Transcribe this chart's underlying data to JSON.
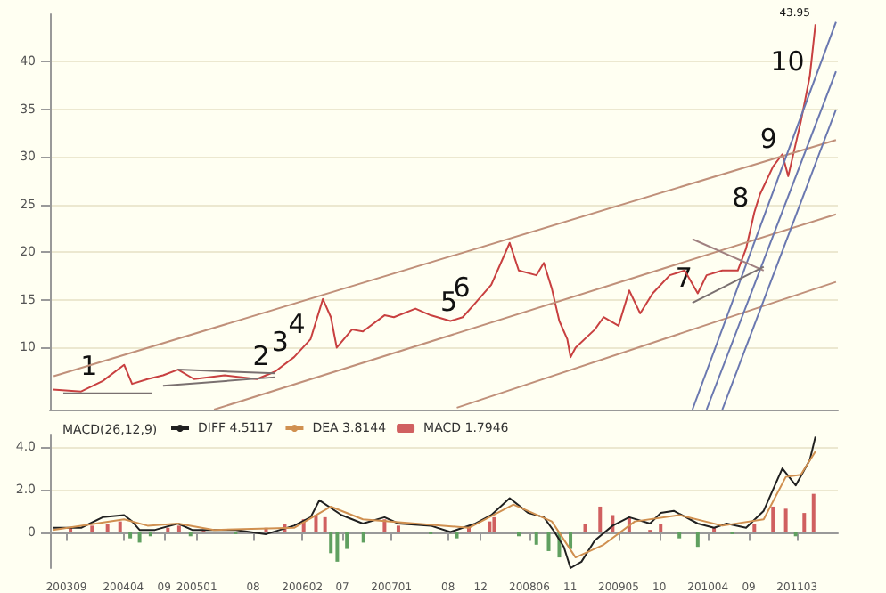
{
  "chart_data": [
    {
      "type": "line",
      "xlim": [
        "2003-07",
        "2011-08"
      ],
      "ylim": [
        3.5,
        45
      ],
      "yticks": [
        10,
        15,
        20,
        25,
        30,
        35,
        40
      ],
      "tick_labels": "y",
      "grid": "y",
      "marker": "none",
      "series": [
        {
          "color": "#c84040",
          "x": [
            "2003-07-12",
            "2003-10-26",
            "2004-01-15",
            "2004-04-04",
            "2004-05-04",
            "2004-07-01",
            "2004-08-28",
            "2004-10-23",
            "2004-12-22",
            "2005-04-16",
            "2005-08-15",
            "2005-10-22",
            "2006-01-01",
            "2006-03-04",
            "2006-04-19",
            "2006-05-19",
            "2006-06-10",
            "2006-08-06",
            "2006-09-16",
            "2006-12-06",
            "2007-01-10",
            "2007-04-01",
            "2007-05-28",
            "2007-08-10",
            "2007-09-25",
            "2007-11-12",
            "2008-01-10",
            "2008-03-19",
            "2008-04-22",
            "2008-06-27",
            "2008-07-25",
            "2008-08-24",
            "2008-09-21",
            "2008-10-21",
            "2008-11-02",
            "2008-11-21",
            "2009-02-01",
            "2009-03-06",
            "2009-05-01",
            "2009-06-10",
            "2009-07-21",
            "2009-09-06",
            "2009-11-09",
            "2010-01-04",
            "2010-02-22",
            "2010-03-27",
            "2010-05-25",
            "2010-07-22",
            "2010-08-22",
            "2010-09-22",
            "2010-10-13",
            "2010-12-01",
            "2011-01-05",
            "2011-01-27",
            "2011-03-15",
            "2011-04-18",
            "2011-05-09"
          ],
          "values": [
            5.6,
            5.4,
            6.5,
            8.2,
            6.2,
            6.7,
            7.1,
            7.7,
            6.7,
            7.1,
            6.7,
            7.5,
            9.0,
            10.9,
            15.1,
            13.2,
            10.0,
            11.9,
            11.7,
            13.4,
            13.2,
            14.1,
            13.4,
            12.8,
            13.2,
            14.7,
            16.6,
            21.0,
            18.1,
            17.6,
            18.9,
            16.2,
            12.8,
            10.9,
            9.0,
            10.0,
            11.9,
            13.2,
            12.3,
            16.0,
            13.6,
            15.7,
            17.6,
            18.1,
            15.7,
            17.6,
            18.1,
            18.1,
            20.4,
            24.2,
            26.1,
            29.0,
            30.3,
            28.0,
            33.7,
            38.5,
            43.95
          ]
        },
        {
          "color": "#c0907a",
          "x": [
            "2003-07-15",
            "2011-07-25"
          ],
          "values": [
            7.0,
            31.8
          ]
        },
        {
          "color": "#c0907a",
          "x": [
            "2005-03-07",
            "2011-07-25"
          ],
          "values": [
            3.5,
            24.0
          ]
        },
        {
          "color": "#c0907a",
          "x": [
            "2007-09-03",
            "2011-07-25"
          ],
          "values": [
            3.7,
            16.9
          ]
        },
        {
          "color": "#6a78b0",
          "x": [
            "2010-02-02",
            "2011-07-25"
          ],
          "values": [
            3.5,
            44.2
          ]
        },
        {
          "color": "#6a78b0",
          "x": [
            "2010-03-27",
            "2011-07-25"
          ],
          "values": [
            3.5,
            39.0
          ]
        },
        {
          "color": "#6a78b0",
          "x": [
            "2010-05-25",
            "2011-07-25"
          ],
          "values": [
            3.5,
            35.0
          ]
        },
        {
          "color": "#7a7070",
          "x": [
            "2003-08-20",
            "2004-07-18"
          ],
          "values": [
            5.2,
            5.2
          ]
        },
        {
          "color": "#7a7070",
          "x": [
            "2004-10-23",
            "2005-10-22"
          ],
          "values": [
            7.7,
            7.3
          ]
        },
        {
          "color": "#7a7070",
          "x": [
            "2004-08-28",
            "2005-10-22"
          ],
          "values": [
            6.0,
            6.9
          ]
        },
        {
          "color": "#a08080",
          "x": [
            "2010-02-02",
            "2010-10-27"
          ],
          "values": [
            21.4,
            18.1
          ]
        },
        {
          "color": "#7a7070",
          "x": [
            "2010-02-02",
            "2010-10-27"
          ],
          "values": [
            14.7,
            18.5
          ]
        }
      ],
      "annotations": [
        {
          "text": "1",
          "x": "2004-01-15",
          "y": 6.5
        },
        {
          "text": "2",
          "x": "2005-10-22",
          "y": 7.5
        },
        {
          "text": "3",
          "x": "2006-01-01",
          "y": 9.0
        },
        {
          "text": "4",
          "x": "2006-03-04",
          "y": 10.9
        },
        {
          "text": "5",
          "x": "2007-09-25",
          "y": 13.2
        },
        {
          "text": "6",
          "x": "2007-11-12",
          "y": 14.7
        },
        {
          "text": "7",
          "x": "2010-02-22",
          "y": 15.7
        },
        {
          "text": "8",
          "x": "2010-09-22",
          "y": 24.2
        },
        {
          "text": "9",
          "x": "2011-01-05",
          "y": 30.3
        },
        {
          "text": "10",
          "x": "2011-04-18",
          "y": 38.5
        },
        {
          "text": "43.95",
          "x": "2011-05-09",
          "y": 43.95
        }
      ]
    },
    {
      "type": "line",
      "title": "MACD(26,12,9)",
      "xlim": [
        "2003-07",
        "2011-08"
      ],
      "ylim": [
        -1.7,
        4.6
      ],
      "yticks": [
        0,
        {
          "value": 2,
          "label": "2.0"
        },
        {
          "value": 4,
          "label": "4.0"
        }
      ],
      "grid": "y",
      "marker": "none",
      "legend": "top left",
      "xticks": [
        {
          "value": "2003-09",
          "label": "200309"
        },
        {
          "value": "2004-04",
          "label": "200404"
        },
        {
          "value": "2004-09",
          "label": "09"
        },
        {
          "value": "2005-01",
          "label": "200501"
        },
        {
          "value": "2005-08",
          "label": "08"
        },
        {
          "value": "2006-02",
          "label": "200602"
        },
        {
          "value": "2006-07",
          "label": "07"
        },
        {
          "value": "2007-01",
          "label": "200701"
        },
        {
          "value": "2007-08",
          "label": "08"
        },
        {
          "value": "2007-12",
          "label": "12"
        },
        {
          "value": "2008-06",
          "label": "200806"
        },
        {
          "value": "2008-11",
          "label": "11"
        },
        {
          "value": "2009-05",
          "label": "200905"
        },
        {
          "value": "2009-10",
          "label": "10"
        },
        {
          "value": "2010-04",
          "label": "201004"
        },
        {
          "value": "2010-09",
          "label": "09"
        },
        {
          "value": "2011-03",
          "label": "201103"
        }
      ],
      "series": [
        {
          "name": "DIFF 4.5117",
          "color": "#202020",
          "x": [
            "2003-07-12",
            "2003-10-26",
            "2004-01-15",
            "2004-04-04",
            "2004-05-04",
            "2004-06-01",
            "2004-07-29",
            "2004-10-23",
            "2004-12-15",
            "2005-05-27",
            "2005-09-18",
            "2006-01-01",
            "2006-03-04",
            "2006-04-06",
            "2006-06-28",
            "2006-09-16",
            "2006-12-06",
            "2007-01-27",
            "2007-05-28",
            "2007-08-10",
            "2007-09-25",
            "2007-11-12",
            "2008-01-10",
            "2008-03-19",
            "2008-05-28",
            "2008-07-25",
            "2008-09-03",
            "2008-10-08",
            "2008-11-02",
            "2008-12-13",
            "2009-02-01",
            "2009-04-09",
            "2009-06-10",
            "2009-08-27",
            "2009-10-06",
            "2009-11-24",
            "2010-02-22",
            "2010-04-24",
            "2010-06-10",
            "2010-08-22",
            "2010-10-27",
            "2011-01-05",
            "2011-02-24",
            "2011-04-18",
            "2011-05-09"
          ],
          "values": [
            0.2,
            0.2,
            0.7,
            0.8,
            0.5,
            0.1,
            0.1,
            0.4,
            0.1,
            0.1,
            -0.1,
            0.3,
            0.7,
            1.5,
            0.8,
            0.4,
            0.7,
            0.4,
            0.3,
            0,
            0.2,
            0.4,
            0.8,
            1.6,
            0.9,
            0.7,
            0,
            -0.7,
            -1.7,
            -1.4,
            -0.4,
            0.3,
            0.7,
            0.4,
            0.9,
            1.0,
            0.4,
            0.2,
            0.4,
            0.2,
            1.0,
            3.0,
            2.2,
            3.4,
            4.5
          ]
        },
        {
          "name": "DEA 3.8144",
          "color": "#d09050",
          "x": [
            "2003-07-12",
            "2004-04-04",
            "2004-07-01",
            "2004-10-23",
            "2005-03-07",
            "2006-01-01",
            "2006-05-19",
            "2006-09-16",
            "2007-04-01",
            "2007-10-18",
            "2008-04-02",
            "2008-08-24",
            "2008-11-21",
            "2009-03-06",
            "2009-07-01",
            "2009-12-15",
            "2010-05-25",
            "2010-10-27",
            "2011-01-18",
            "2011-03-15",
            "2011-05-09"
          ],
          "values": [
            0.1,
            0.6,
            0.3,
            0.4,
            0.1,
            0.2,
            1.2,
            0.6,
            0.4,
            0.2,
            1.3,
            0.5,
            -1.2,
            -0.6,
            0.5,
            0.8,
            0.3,
            0.6,
            2.6,
            2.7,
            3.8
          ]
        },
        {
          "name": "MACD 1.7946",
          "type": "bar",
          "color": "#d06060",
          "x": [
            "2003-09-16",
            "2003-12-06",
            "2004-02-02",
            "2004-03-20",
            "2004-04-27",
            "2004-06-01",
            "2004-07-12",
            "2004-09-15",
            "2004-10-27",
            "2004-12-09",
            "2005-01-27",
            "2005-05-27",
            "2005-09-18",
            "2005-11-27",
            "2006-02-06",
            "2006-03-24",
            "2006-04-27",
            "2006-05-19",
            "2006-06-12",
            "2006-07-18",
            "2006-09-18",
            "2006-12-06",
            "2007-01-27",
            "2007-05-28",
            "2007-09-03",
            "2007-10-18",
            "2008-01-04",
            "2008-01-21",
            "2008-04-22",
            "2008-06-27",
            "2008-08-12",
            "2008-09-21",
            "2008-11-02",
            "2008-12-27",
            "2009-02-21",
            "2009-04-09",
            "2009-06-10",
            "2009-08-27",
            "2009-10-06",
            "2009-12-15",
            "2010-02-22",
            "2010-04-24",
            "2010-07-01",
            "2010-09-22",
            "2010-12-01",
            "2011-01-18",
            "2011-02-24",
            "2011-03-28",
            "2011-05-02"
          ],
          "values": [
            0.2,
            0.3,
            0.4,
            0.5,
            -0.3,
            -0.5,
            -0.2,
            0.2,
            0.3,
            -0.2,
            0.1,
            -0.1,
            0.2,
            0.4,
            0.6,
            0.8,
            0.7,
            -1.0,
            -1.4,
            -0.8,
            -0.5,
            0.6,
            0.3,
            -0.1,
            -0.3,
            0.3,
            0.5,
            0.7,
            -0.2,
            -0.6,
            -0.9,
            -1.2,
            -0.8,
            0.4,
            1.2,
            0.8,
            0.7,
            0.1,
            0.4,
            -0.3,
            -0.7,
            0.2,
            -0.1,
            0.4,
            1.2,
            1.1,
            -0.2,
            0.9,
            1.8
          ],
          "colors": [
            "#d06060",
            "#d06060",
            "#d06060",
            "#d06060",
            "#60a060",
            "#60a060",
            "#60a060",
            "#d06060",
            "#d06060",
            "#60a060",
            "#d06060",
            "#60a060",
            "#d06060",
            "#d06060",
            "#d06060",
            "#d06060",
            "#d06060",
            "#60a060",
            "#60a060",
            "#60a060",
            "#60a060",
            "#d06060",
            "#d06060",
            "#60a060",
            "#60a060",
            "#d06060",
            "#d06060",
            "#d06060",
            "#60a060",
            "#60a060",
            "#60a060",
            "#60a060",
            "#60a060",
            "#d06060",
            "#d06060",
            "#d06060",
            "#d06060",
            "#d06060",
            "#d06060",
            "#60a060",
            "#60a060",
            "#d06060",
            "#60a060",
            "#d06060",
            "#d06060",
            "#d06060",
            "#60a060",
            "#d06060",
            "#d06060"
          ]
        }
      ]
    }
  ]
}
